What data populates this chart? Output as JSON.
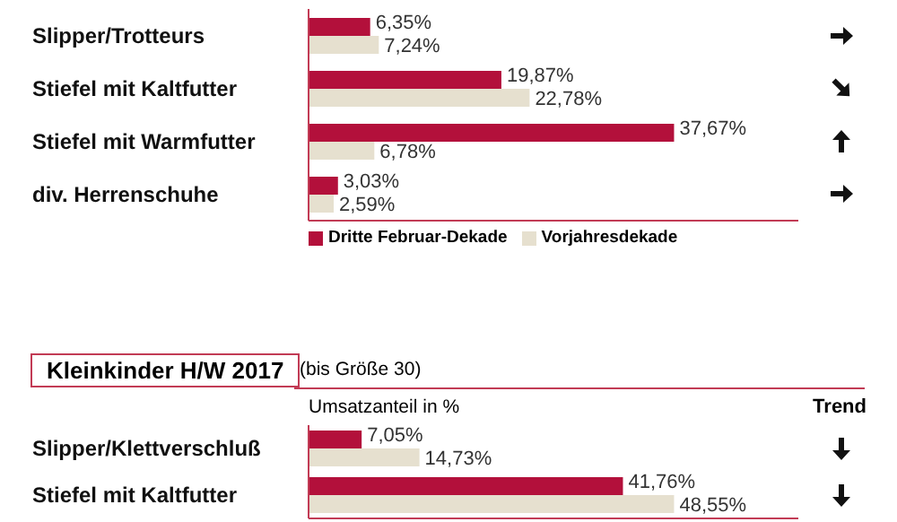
{
  "chart_data": [
    {
      "type": "bar",
      "orientation": "horizontal",
      "categories": [
        "Slipper/Trotteurs",
        "Stiefel mit Kaltfutter",
        "Stiefel mit Warmfutter",
        "div. Herrenschuhe"
      ],
      "series": [
        {
          "name": "Dritte Februar-Dekade",
          "color": "#b3103b",
          "values": [
            6.35,
            19.87,
            37.67,
            3.03
          ],
          "value_labels": [
            "6,35%",
            "19,87%",
            "37,67%",
            "3,03%"
          ]
        },
        {
          "name": "Vorjahresdekade",
          "color": "#e6e0cf",
          "values": [
            7.24,
            22.78,
            6.78,
            2.59
          ],
          "value_labels": [
            "7,24%",
            "22,78%",
            "6,78%",
            "2,59%"
          ]
        }
      ],
      "tick_labels": "y",
      "legend": "bottom"
    },
    {
      "type": "bar",
      "orientation": "horizontal",
      "title": "Kleinkinder H/W 2017",
      "subtitle": "(bis Größe 30)",
      "xlabel": "Umsatzanteil in %",
      "annotations": [
        "Trend"
      ],
      "categories": [
        "Slipper/Klettverschluß",
        "Stiefel mit Kaltfutter"
      ],
      "series": [
        {
          "color": "#b3103b",
          "values": [
            7.05,
            41.76
          ],
          "value_labels": [
            "7,05%",
            "41,76%"
          ]
        },
        {
          "color": "#e6e0cf",
          "values": [
            14.73,
            48.55
          ],
          "value_labels": [
            "14,73%",
            "48,55%"
          ]
        }
      ],
      "tick_labels": "y"
    }
  ]
}
